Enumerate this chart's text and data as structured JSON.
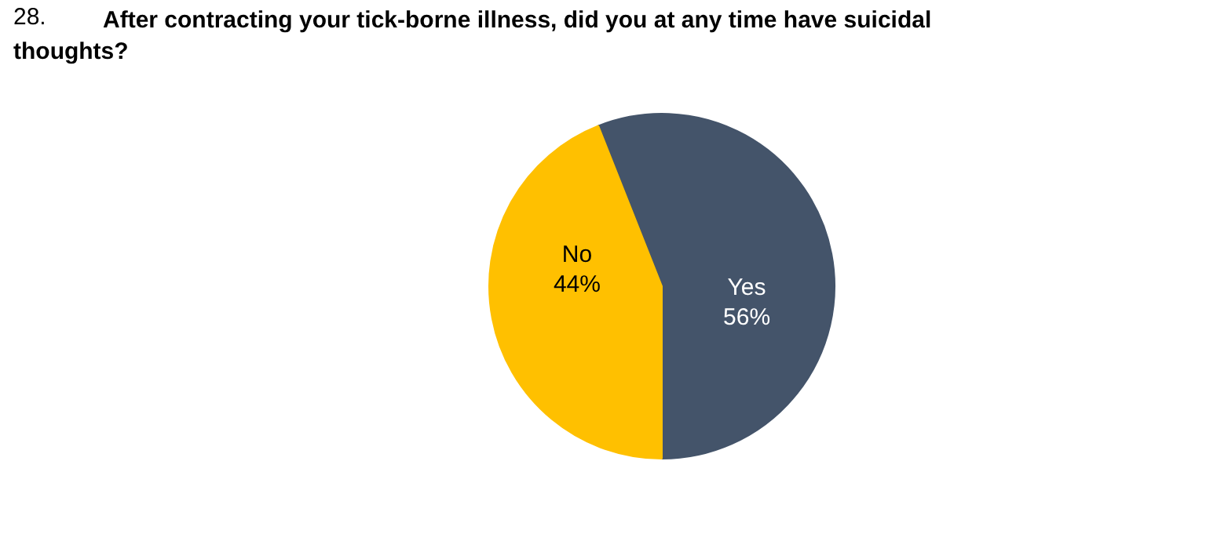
{
  "chart_data": {
    "type": "pie",
    "title": "28. After contracting your tick-borne illness, did you at any time have suicidal thoughts?",
    "categories": [
      "Yes",
      "No"
    ],
    "values": [
      56,
      44
    ],
    "colors": [
      "#44546a",
      "#ffc000"
    ],
    "value_labels": [
      "56%",
      "44%"
    ]
  }
}
